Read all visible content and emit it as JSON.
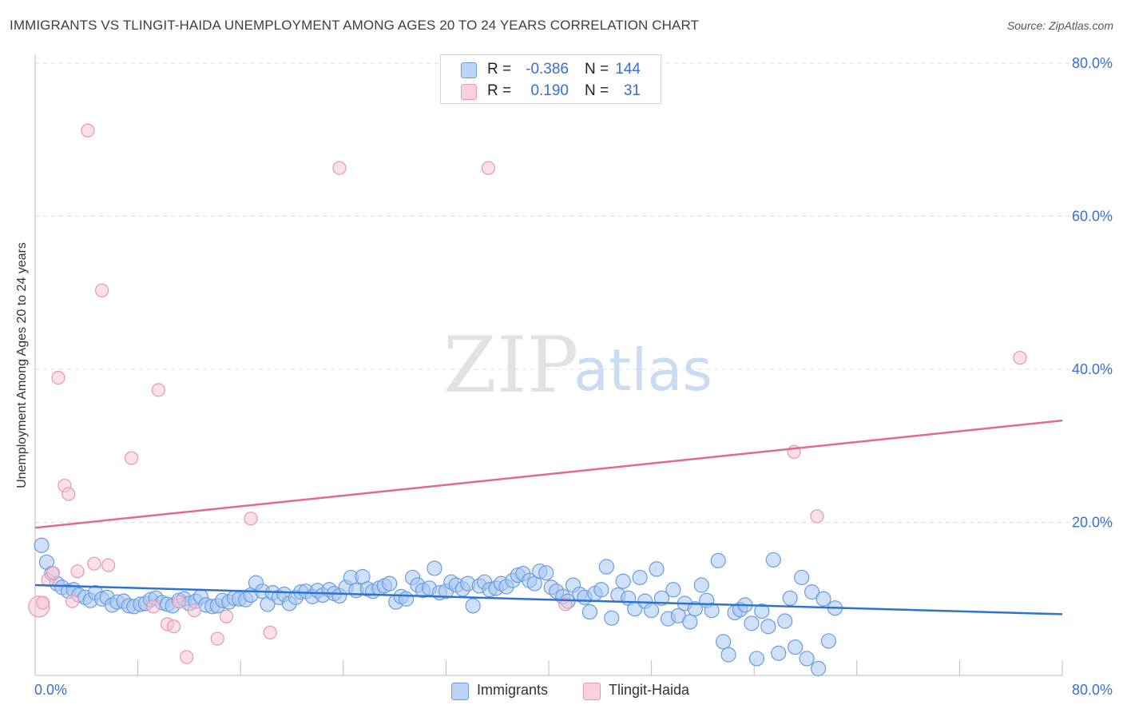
{
  "title": "IMMIGRANTS VS TLINGIT-HAIDA UNEMPLOYMENT AMONG AGES 20 TO 24 YEARS CORRELATION CHART",
  "source": "Source: ZipAtlas.com",
  "watermark": {
    "zip": "ZIP",
    "atlas": "atlas"
  },
  "legend": {
    "series": [
      {
        "name": "Immigrants",
        "r_label": "R =",
        "r_value": "-0.386",
        "n_label": "N =",
        "n_value": "144"
      },
      {
        "name": "Tlingit-Haida",
        "r_label": "R =",
        "r_value": "0.190",
        "n_label": "N =",
        "n_value": "31"
      }
    ]
  },
  "colors": {
    "immigrants_fill": "#a7c8f2",
    "immigrants_stroke": "#6b9be0",
    "immigrants_line": "#2f73d0",
    "tlingit_fill": "#f8c6d6",
    "tlingit_stroke": "#ea95b1",
    "tlingit_line": "#e06a93",
    "axis_label": "#3a6fd0",
    "grid": "#dddddd"
  },
  "chart_data": {
    "type": "scatter",
    "title": "IMMIGRANTS VS TLINGIT-HAIDA UNEMPLOYMENT AMONG AGES 20 TO 24 YEARS CORRELATION CHART",
    "xlabel": "",
    "ylabel": "Unemployment Among Ages 20 to 24 years",
    "xlim": [
      0,
      80
    ],
    "ylim": [
      0,
      80
    ],
    "x_tick_labels": [
      "0.0%",
      "80.0%"
    ],
    "y_tick_labels": [
      "20.0%",
      "40.0%",
      "60.0%",
      "80.0%"
    ],
    "y_ticks": [
      20,
      40,
      60,
      80
    ],
    "grid": true,
    "legend_position": "top-center",
    "series": [
      {
        "name": "Immigrants",
        "trend": {
          "x": [
            0,
            80
          ],
          "y": [
            11.8,
            8.0
          ]
        },
        "points": [
          [
            0.5,
            17
          ],
          [
            0.9,
            14.8
          ],
          [
            1.3,
            13.3
          ],
          [
            1.7,
            12
          ],
          [
            2.1,
            11.5
          ],
          [
            2.6,
            11
          ],
          [
            3,
            11.2
          ],
          [
            3.4,
            10.5
          ],
          [
            3.9,
            10.2
          ],
          [
            4.3,
            9.8
          ],
          [
            4.7,
            10.8
          ],
          [
            5.2,
            10
          ],
          [
            5.6,
            10.2
          ],
          [
            6,
            9.2
          ],
          [
            6.4,
            9.6
          ],
          [
            6.9,
            9.7
          ],
          [
            7.3,
            9.1
          ],
          [
            7.7,
            9
          ],
          [
            8.2,
            9.3
          ],
          [
            8.6,
            9.4
          ],
          [
            9,
            9.9
          ],
          [
            9.4,
            10.1
          ],
          [
            9.9,
            9.5
          ],
          [
            10.3,
            9.3
          ],
          [
            10.7,
            9.1
          ],
          [
            11.2,
            9.8
          ],
          [
            11.6,
            10
          ],
          [
            12,
            9.4
          ],
          [
            12.5,
            9.7
          ],
          [
            12.9,
            10.3
          ],
          [
            13.3,
            9.2
          ],
          [
            13.8,
            9
          ],
          [
            14.2,
            9.1
          ],
          [
            14.6,
            9.8
          ],
          [
            15.1,
            9.6
          ],
          [
            15.5,
            10.1
          ],
          [
            15.9,
            10
          ],
          [
            16.4,
            9.9
          ],
          [
            16.8,
            10.5
          ],
          [
            17.2,
            12.1
          ],
          [
            17.7,
            11
          ],
          [
            18.1,
            9.3
          ],
          [
            18.5,
            10.8
          ],
          [
            19,
            10.2
          ],
          [
            19.4,
            10.6
          ],
          [
            19.8,
            9.4
          ],
          [
            20.3,
            10.2
          ],
          [
            20.7,
            10.9
          ],
          [
            21.1,
            11
          ],
          [
            21.6,
            10.3
          ],
          [
            22,
            11.1
          ],
          [
            22.4,
            10.5
          ],
          [
            22.9,
            11.2
          ],
          [
            23.3,
            10.7
          ],
          [
            23.7,
            10.4
          ],
          [
            24.2,
            11.5
          ],
          [
            24.6,
            12.8
          ],
          [
            25,
            11.1
          ],
          [
            25.5,
            12.9
          ],
          [
            25.9,
            11.3
          ],
          [
            26.3,
            11
          ],
          [
            26.8,
            11.4
          ],
          [
            27.2,
            11.7
          ],
          [
            27.6,
            12
          ],
          [
            28.1,
            9.6
          ],
          [
            28.5,
            10.3
          ],
          [
            28.9,
            10
          ],
          [
            29.4,
            12.8
          ],
          [
            29.8,
            11.8
          ],
          [
            30.2,
            11.1
          ],
          [
            30.7,
            11.4
          ],
          [
            31.1,
            14
          ],
          [
            31.5,
            10.8
          ],
          [
            32,
            11
          ],
          [
            32.4,
            12.2
          ],
          [
            32.8,
            11.8
          ],
          [
            33.3,
            11.3
          ],
          [
            33.7,
            12
          ],
          [
            34.1,
            9.1
          ],
          [
            34.6,
            11.7
          ],
          [
            35,
            12.2
          ],
          [
            35.4,
            11.2
          ],
          [
            35.9,
            11.4
          ],
          [
            36.3,
            12
          ],
          [
            36.7,
            11.6
          ],
          [
            37.2,
            12.4
          ],
          [
            37.6,
            13.1
          ],
          [
            38,
            13.3
          ],
          [
            38.5,
            12.4
          ],
          [
            38.9,
            12
          ],
          [
            39.3,
            13.6
          ],
          [
            39.8,
            13.4
          ],
          [
            40.2,
            11.5
          ],
          [
            40.6,
            11
          ],
          [
            41.1,
            10.3
          ],
          [
            41.5,
            9.7
          ],
          [
            41.9,
            11.8
          ],
          [
            42.4,
            10.6
          ],
          [
            42.8,
            10.2
          ],
          [
            43.2,
            8.3
          ],
          [
            43.6,
            10.7
          ],
          [
            44.1,
            11.2
          ],
          [
            44.5,
            14.2
          ],
          [
            44.9,
            7.5
          ],
          [
            45.4,
            10.5
          ],
          [
            45.8,
            12.3
          ],
          [
            46.2,
            10.1
          ],
          [
            46.7,
            8.7
          ],
          [
            47.1,
            12.8
          ],
          [
            47.5,
            9.7
          ],
          [
            48,
            8.5
          ],
          [
            48.4,
            13.9
          ],
          [
            48.8,
            10.1
          ],
          [
            49.3,
            7.4
          ],
          [
            49.7,
            11.2
          ],
          [
            50.1,
            7.8
          ],
          [
            50.6,
            9.4
          ],
          [
            51,
            7
          ],
          [
            51.4,
            8.7
          ],
          [
            51.9,
            11.8
          ],
          [
            52.3,
            9.8
          ],
          [
            52.7,
            8.5
          ],
          [
            53.2,
            15
          ],
          [
            53.6,
            4.4
          ],
          [
            54,
            2.7
          ],
          [
            54.5,
            8.2
          ],
          [
            54.9,
            8.6
          ],
          [
            55.3,
            9.2
          ],
          [
            55.8,
            6.8
          ],
          [
            56.2,
            2.2
          ],
          [
            56.6,
            8.4
          ],
          [
            57.1,
            6.4
          ],
          [
            57.5,
            15.1
          ],
          [
            57.9,
            2.9
          ],
          [
            58.4,
            7.1
          ],
          [
            58.8,
            10.1
          ],
          [
            59.2,
            3.7
          ],
          [
            59.7,
            12.8
          ],
          [
            60.1,
            2.2
          ],
          [
            60.5,
            10.9
          ],
          [
            61,
            0.9
          ],
          [
            61.4,
            10
          ],
          [
            61.8,
            4.5
          ],
          [
            62.3,
            8.8
          ]
        ]
      },
      {
        "name": "Tlingit-Haida",
        "trend": {
          "x": [
            0,
            80
          ],
          "y": [
            19.3,
            33.3
          ]
        },
        "points": [
          [
            0.3,
            9
          ],
          [
            0.6,
            9.5
          ],
          [
            1,
            12.5
          ],
          [
            1.4,
            13.4
          ],
          [
            1.8,
            38.9
          ],
          [
            2.3,
            24.8
          ],
          [
            2.6,
            23.7
          ],
          [
            2.9,
            9.7
          ],
          [
            3.3,
            13.6
          ],
          [
            4.1,
            71.2
          ],
          [
            4.6,
            14.6
          ],
          [
            5.2,
            50.3
          ],
          [
            5.7,
            14.4
          ],
          [
            7.5,
            28.4
          ],
          [
            9.2,
            9
          ],
          [
            9.6,
            37.3
          ],
          [
            10.3,
            6.7
          ],
          [
            10.8,
            6.4
          ],
          [
            11.2,
            9.6
          ],
          [
            11.8,
            2.4
          ],
          [
            12.4,
            8.5
          ],
          [
            14.2,
            4.8
          ],
          [
            14.9,
            7.7
          ],
          [
            16.8,
            20.5
          ],
          [
            18.3,
            5.6
          ],
          [
            23.7,
            66.3
          ],
          [
            35.3,
            66.3
          ],
          [
            41.3,
            9.3
          ],
          [
            59.1,
            29.2
          ],
          [
            60.9,
            20.8
          ],
          [
            76.7,
            41.5
          ]
        ]
      }
    ]
  }
}
